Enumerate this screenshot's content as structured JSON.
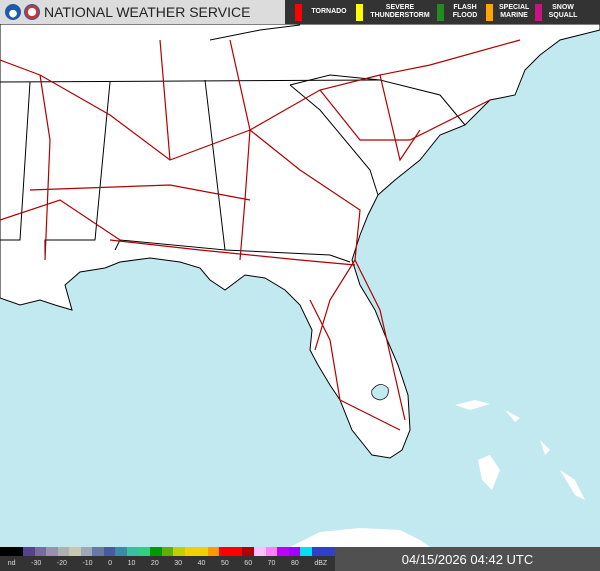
{
  "header": {
    "title": "NATIONAL WEATHER SERVICE",
    "legend": [
      {
        "label": "TORNADO",
        "color": "#ff0000"
      },
      {
        "label": "SEVERE THUNDERSTORM",
        "color": "#ffff00"
      },
      {
        "label": "FLASH FLOOD",
        "color": "#228b22"
      },
      {
        "label": "SPECIAL MARINE",
        "color": "#ffa500"
      },
      {
        "label": "SNOW SQUALL",
        "color": "#c71585"
      }
    ]
  },
  "scale": {
    "ticks": [
      "nd",
      "-30",
      "-20",
      "-10",
      "0",
      "10",
      "20",
      "30",
      "40",
      "50",
      "60",
      "70",
      "80",
      "dBZ"
    ],
    "colors": [
      "#000000",
      "#000000",
      "#5a3f8a",
      "#7a6a9e",
      "#9c8fb0",
      "#b0b0b0",
      "#c8c8b0",
      "#a0a8b8",
      "#6878a8",
      "#4a5aa0",
      "#3a8aa8",
      "#38c0a0",
      "#30d080",
      "#009900",
      "#60b000",
      "#c0d000",
      "#f0d000",
      "#f0d000",
      "#ff9900",
      "#ff0000",
      "#ff0000",
      "#b00000",
      "#ffc0ff",
      "#ff80ff",
      "#c000ff",
      "#a000ff",
      "#00e0f0",
      "#3040c8",
      "#3040c8"
    ]
  },
  "timestamp": "04/15/2026 04:42 UTC",
  "colors": {
    "ocean": "#c3e9f0",
    "land": "#ffffff",
    "roads": "#b00000",
    "borders": "#000000"
  }
}
